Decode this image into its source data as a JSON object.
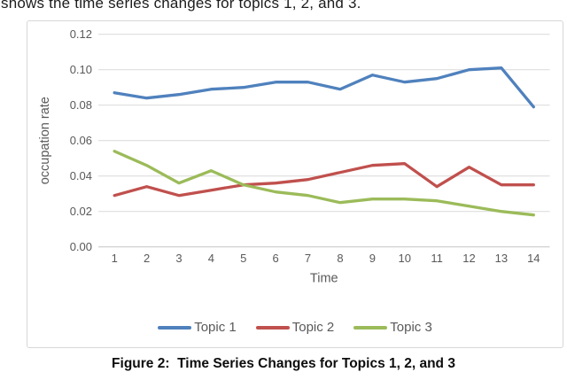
{
  "page": {
    "top_text": "shows the time series changes for topics 1, 2, and 3.",
    "caption": "Figure 2:  Time Series Changes for Topics 1, 2, and 3"
  },
  "chart_data": {
    "type": "line",
    "title": "",
    "xlabel": "Time",
    "ylabel": "occupation rate",
    "x": [
      "1",
      "2",
      "3",
      "4",
      "5",
      "6",
      "7",
      "8",
      "9",
      "10",
      "11",
      "12",
      "13",
      "14"
    ],
    "ylim": [
      0,
      0.12
    ],
    "ytick_step": 0.02,
    "grid": true,
    "legend_position": "bottom",
    "colors": {
      "gridline": "#d9d9d9",
      "axis_line": "#c3c3c3",
      "tick_text": "#595959",
      "border": "#d7d7d7"
    },
    "series": [
      {
        "name": "Topic 1",
        "color": "#4F81BD",
        "values": [
          0.087,
          0.084,
          0.086,
          0.089,
          0.09,
          0.093,
          0.093,
          0.089,
          0.097,
          0.093,
          0.095,
          0.1,
          0.101,
          0.079
        ]
      },
      {
        "name": "Topic 2",
        "color": "#C0504D",
        "values": [
          0.029,
          0.034,
          0.029,
          0.032,
          0.035,
          0.036,
          0.038,
          0.042,
          0.046,
          0.047,
          0.034,
          0.045,
          0.035,
          0.035
        ]
      },
      {
        "name": "Topic 3",
        "color": "#9BBB59",
        "values": [
          0.054,
          0.046,
          0.036,
          0.043,
          0.035,
          0.031,
          0.029,
          0.025,
          0.027,
          0.027,
          0.026,
          0.023,
          0.02,
          0.018
        ]
      }
    ]
  }
}
